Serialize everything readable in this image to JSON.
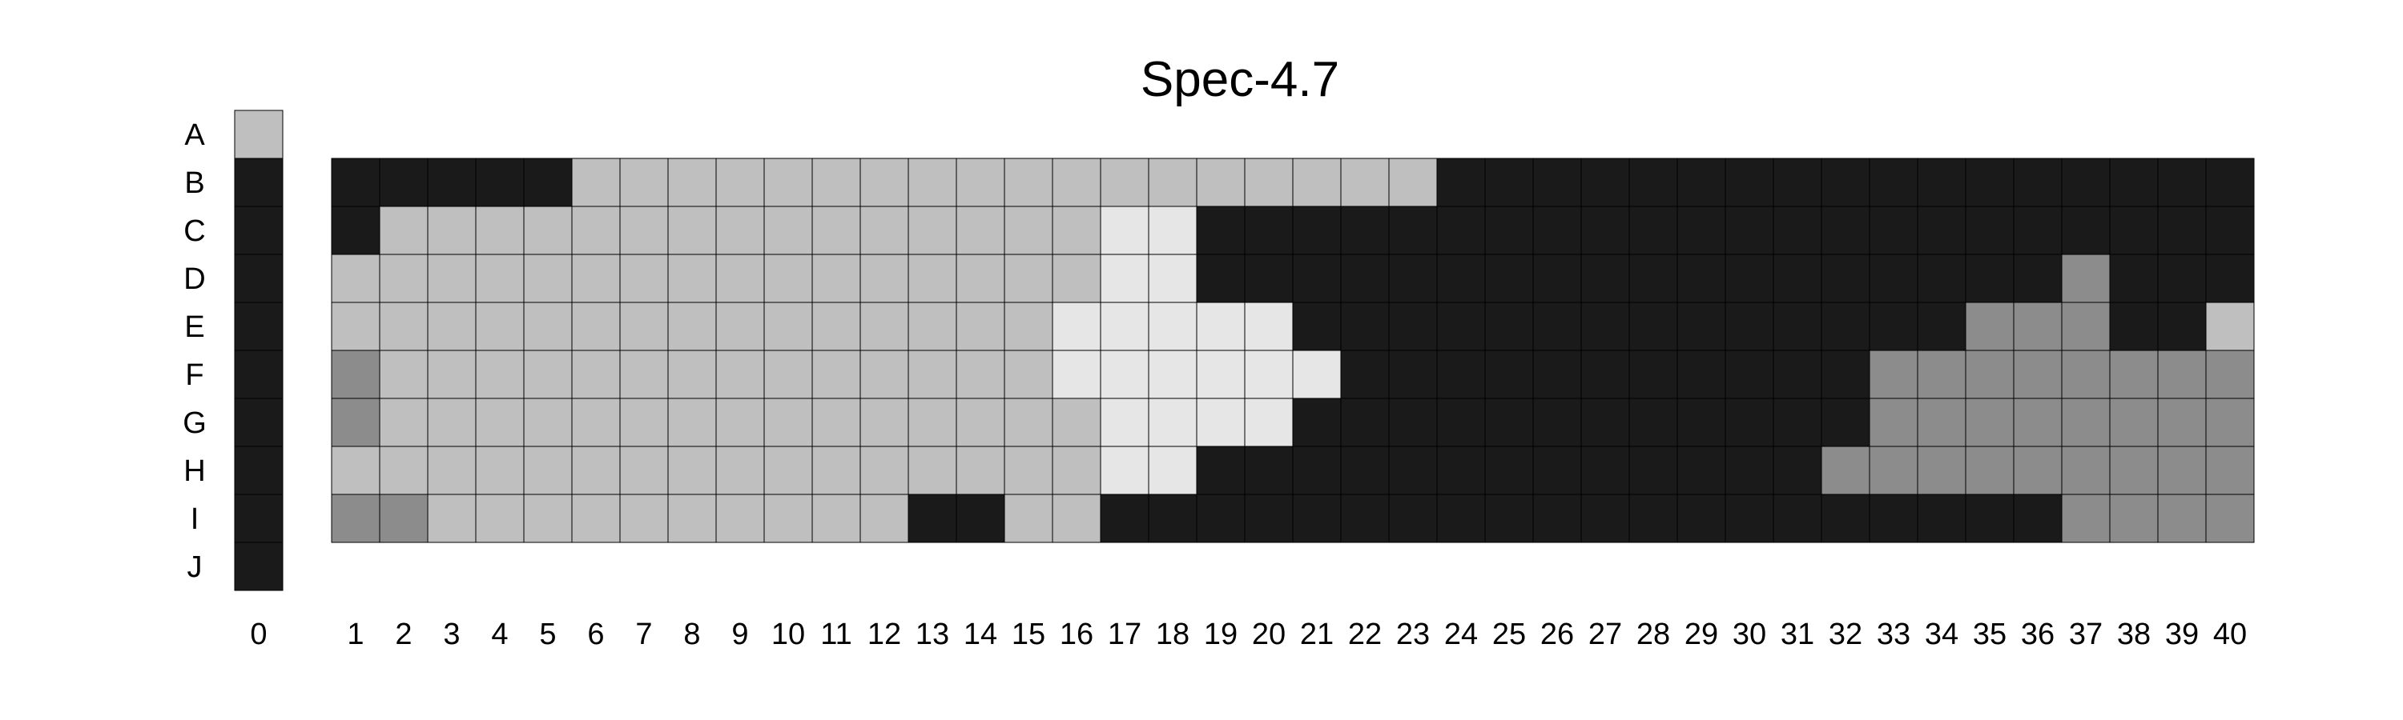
{
  "chart_data": {
    "type": "heatmap",
    "title": "Spec-4.7",
    "row_labels": [
      "A",
      "B",
      "C",
      "D",
      "E",
      "F",
      "G",
      "H",
      "I",
      "J"
    ],
    "column0": {
      "label": "0",
      "values": [
        "L",
        "K",
        "K",
        "K",
        "K",
        "K",
        "K",
        "K",
        "K",
        "K"
      ]
    },
    "columns": [
      "1",
      "2",
      "3",
      "4",
      "5",
      "6",
      "7",
      "8",
      "9",
      "10",
      "11",
      "12",
      "13",
      "14",
      "15",
      "16",
      "17",
      "18",
      "19",
      "20",
      "21",
      "22",
      "23",
      "24",
      "25",
      "26",
      "27",
      "28",
      "29",
      "30",
      "31",
      "32",
      "33",
      "34",
      "35",
      "36",
      "37",
      "38",
      "39",
      "40"
    ],
    "grid_rows": [
      "B",
      "C",
      "D",
      "E",
      "F",
      "G",
      "H",
      "I"
    ],
    "grid": [
      "KKKKKLLLLLLLLLLLLLLLLLLKKKKKKKKKKKKKKKKK",
      "KLLLLLLLLLLLLLLLWWKKKKKKKKKKKKKKKKKKKKKK",
      "LLLLLLLLLLLLLLLLWWKKKKKKKKKKKKKKKKKKMKKK",
      "LLLLLLLLLLLLLLLWWWWWKKKKKKKKKKKKKKMMMKKL",
      "MLLLLLLLLLLLLLLWWWWWWKKKKKKKKKKKMMMMMMMM",
      "MLLLLLLLLLLLLLLLWWWWKKKKKKKKKKKKMMMMMMMM",
      "LLLLLLLLLLLLLLLLWWKKKKKKKKKKKKKMMMMMMMMM",
      "MMLLLLLLLLLLKKLLKKKKKKKKKKKKKKKKKKKKMMMM"
    ],
    "colors": {
      "K": "#1a1a1a",
      "L": "#bfbfbf",
      "W": "#e6e6e6",
      "M": "#8c8c8c"
    }
  }
}
